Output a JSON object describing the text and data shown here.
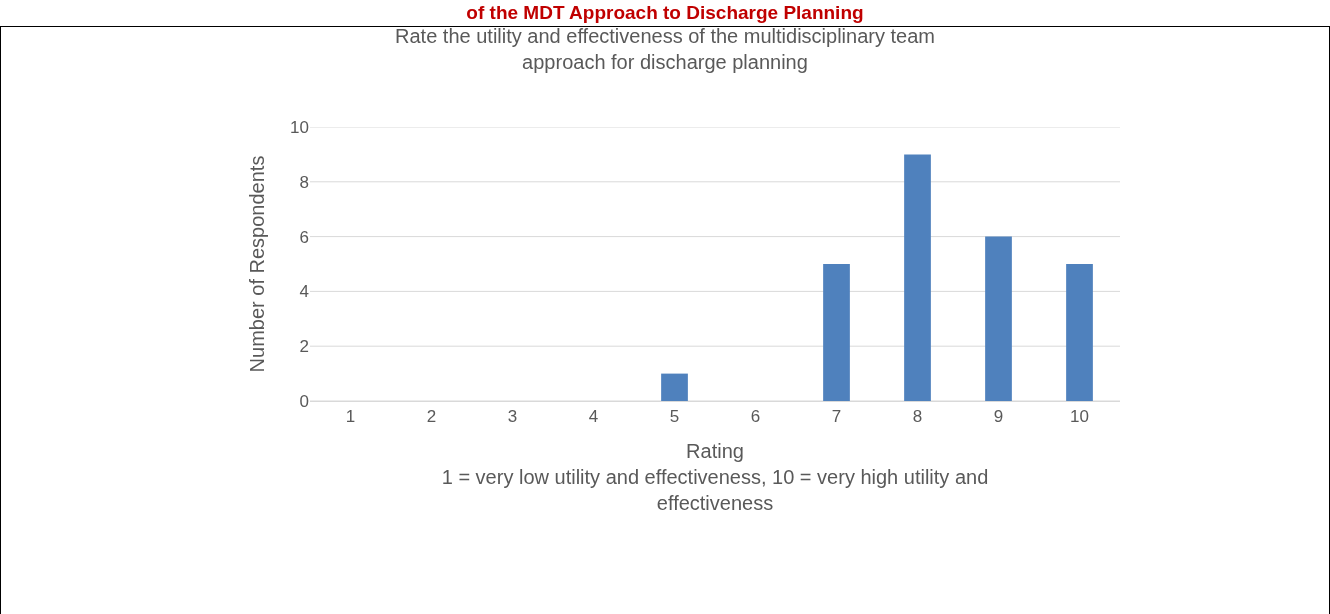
{
  "chart_data": {
    "type": "bar",
    "title": "Rate the utility and effectiveness of the multidisciplinary team\napproach for discharge planning",
    "xlabel": "Rating\n1 = very low utility and effectiveness, 10 = very high utility and\neffectiveness",
    "ylabel": "Number of Respondents",
    "annotations": [
      "of the MDT Approach to Discharge Planning"
    ],
    "categories": [
      "1",
      "2",
      "3",
      "4",
      "5",
      "6",
      "7",
      "8",
      "9",
      "10"
    ],
    "values": [
      0,
      0,
      0,
      0,
      1,
      0,
      5,
      9,
      6,
      5
    ],
    "color": "#4f81bd",
    "ylim": [
      0,
      10
    ],
    "yticks": [
      0,
      2,
      4,
      6,
      8,
      10
    ],
    "grid": "y",
    "legend": false
  }
}
